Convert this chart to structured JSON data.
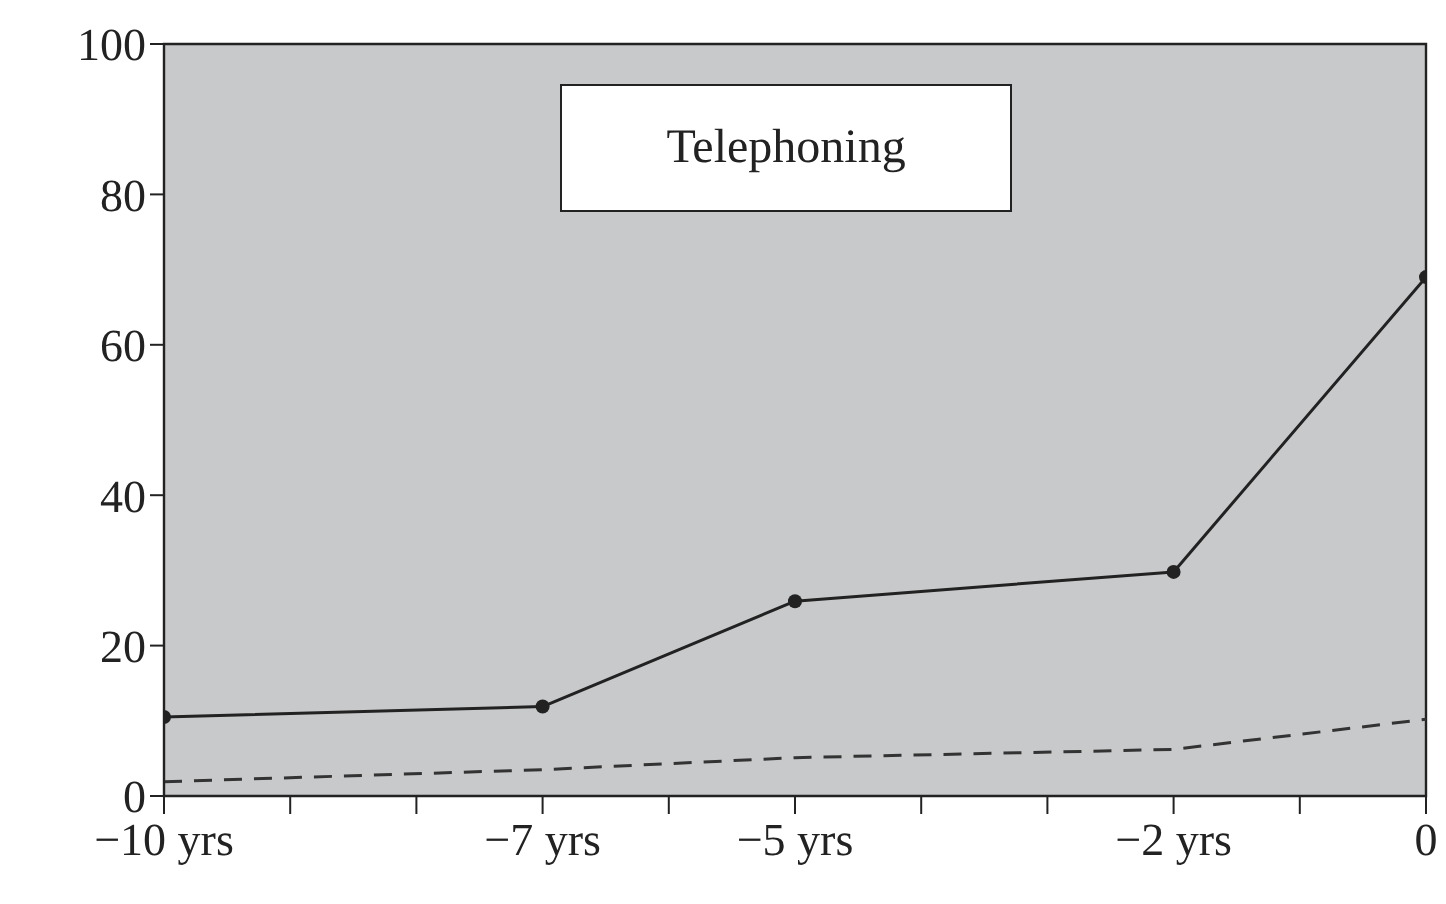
{
  "chart_data": {
    "type": "line",
    "title": "Telephoning",
    "x": [
      -10,
      -7,
      -5,
      -2,
      0
    ],
    "series": [
      {
        "color": "#222222",
        "values": [
          10.5,
          11.9,
          25.9,
          29.8,
          69
        ],
        "marker": "circle",
        "line_style": "solid"
      },
      {
        "color": "#333333",
        "values": [
          1.9,
          3.5,
          5.1,
          6.2,
          10.2
        ],
        "marker": "none",
        "line_style": "dashed"
      }
    ],
    "xlim": [
      -10,
      0
    ],
    "xticks": [
      {
        "value": -10,
        "label": "−10 yrs"
      },
      {
        "value": -9,
        "label": null
      },
      {
        "value": -8,
        "label": null
      },
      {
        "value": -7,
        "label": "−7 yrs"
      },
      {
        "value": -6,
        "label": null
      },
      {
        "value": -5,
        "label": "−5 yrs"
      },
      {
        "value": -4,
        "label": null
      },
      {
        "value": -3,
        "label": null
      },
      {
        "value": -2,
        "label": "−2 yrs"
      },
      {
        "value": -1,
        "label": null
      },
      {
        "value": 0,
        "label": "0"
      }
    ],
    "ylim": [
      0,
      100
    ],
    "yticks": [
      0,
      20,
      40,
      60,
      80,
      100
    ],
    "grid": false
  }
}
